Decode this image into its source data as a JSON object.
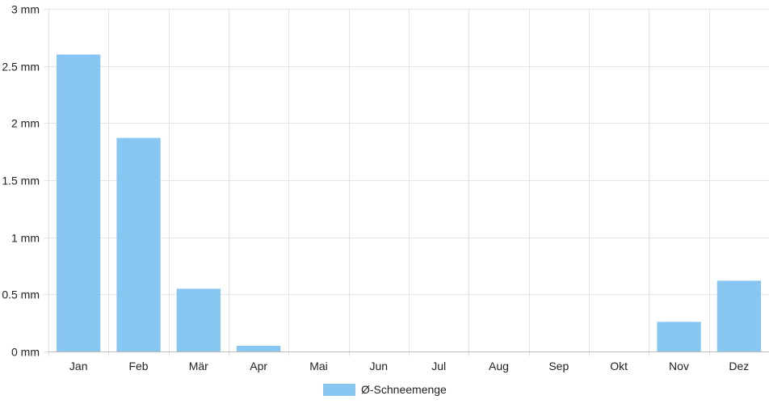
{
  "chart_data": {
    "type": "bar",
    "categories": [
      "Jan",
      "Feb",
      "Mär",
      "Apr",
      "Mai",
      "Jun",
      "Jul",
      "Aug",
      "Sep",
      "Okt",
      "Nov",
      "Dez"
    ],
    "series": [
      {
        "name": "Ø-Schneemenge",
        "values": [
          2.6,
          1.87,
          0.55,
          0.05,
          0,
          0,
          0,
          0,
          0,
          0,
          0.26,
          0.62
        ]
      }
    ],
    "y_ticks": [
      "0 mm",
      "0.5 mm",
      "1 mm",
      "1.5 mm",
      "2 mm",
      "2.5 mm",
      "3 mm"
    ],
    "ylim": [
      0,
      3
    ],
    "grid": true,
    "legend_position": "bottom-center",
    "colors": {
      "bar": "#88c6f2",
      "grid": "#e4e4e4",
      "axis": "#bdbdbd",
      "text": "#222222"
    }
  }
}
